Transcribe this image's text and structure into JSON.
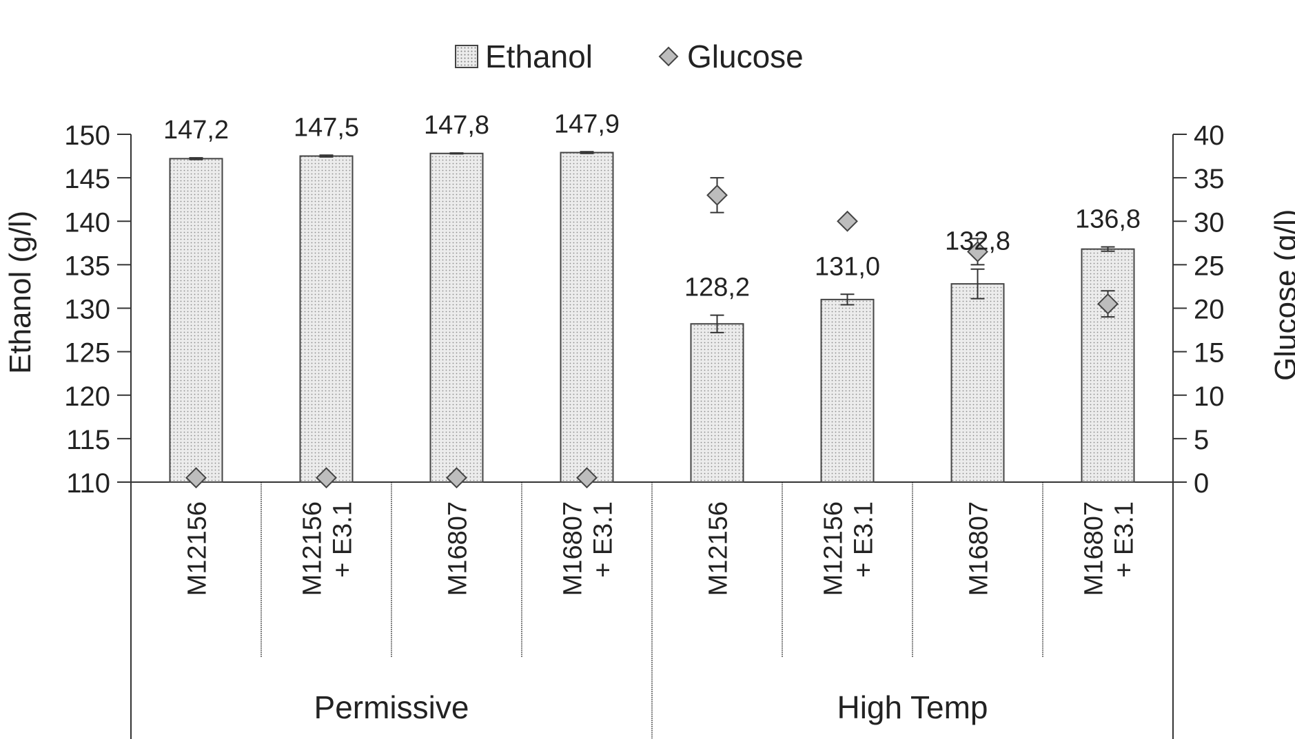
{
  "legend": {
    "ethanol_label": "Ethanol",
    "glucose_label": "Glucose"
  },
  "axes": {
    "y_left_label": "Ethanol (g/l)",
    "y_right_label": "Glucose (g/l)"
  },
  "groups": [
    {
      "label": "Permissive"
    },
    {
      "label": "High Temp"
    }
  ],
  "colors": {
    "bar_fill": "#ececec",
    "bar_dots": "#8a8a8a",
    "bar_border": "#444444",
    "diamond_fill": "#bdbdbd",
    "axis": "#333333"
  },
  "chart_data": {
    "type": "bar",
    "categories": [
      [
        "M12156"
      ],
      [
        "M12156",
        "+ E3.1"
      ],
      [
        "M16807"
      ],
      [
        "M16807",
        "+ E3.1"
      ],
      [
        "M12156"
      ],
      [
        "M12156",
        "+ E3.1"
      ],
      [
        "M16807"
      ],
      [
        "M16807",
        "+ E3.1"
      ]
    ],
    "category_groups": [
      "Permissive",
      "Permissive",
      "Permissive",
      "Permissive",
      "High Temp",
      "High Temp",
      "High Temp",
      "High Temp"
    ],
    "series": [
      {
        "name": "Ethanol",
        "axis": "left",
        "type": "bar",
        "values": [
          147.2,
          147.5,
          147.8,
          147.9,
          128.2,
          131.0,
          132.8,
          136.8
        ],
        "value_labels": [
          "147,2",
          "147,5",
          "147,8",
          "147,9",
          "128,2",
          "131,0",
          "132,8",
          "136,8"
        ],
        "error": [
          0.1,
          0.1,
          0.05,
          0.1,
          1.0,
          0.6,
          1.7,
          0.25
        ]
      },
      {
        "name": "Glucose",
        "axis": "right",
        "type": "scatter",
        "marker": "diamond",
        "values": [
          0.5,
          0.5,
          0.5,
          0.5,
          33.0,
          30.0,
          26.5,
          20.5
        ],
        "error": [
          0,
          0,
          0,
          0,
          2.0,
          0,
          1.5,
          1.5
        ]
      }
    ],
    "y_left": {
      "label": "Ethanol (g/l)",
      "min": 110,
      "max": 150,
      "step": 5,
      "ticks": [
        "110",
        "115",
        "120",
        "125",
        "130",
        "135",
        "140",
        "145",
        "150"
      ]
    },
    "y_right": {
      "label": "Glucose (g/l)",
      "min": 0,
      "max": 40,
      "step": 5,
      "ticks": [
        "0",
        "5",
        "10",
        "15",
        "20",
        "25",
        "30",
        "35",
        "40"
      ]
    },
    "legend_position": "top-center",
    "grid": false
  }
}
